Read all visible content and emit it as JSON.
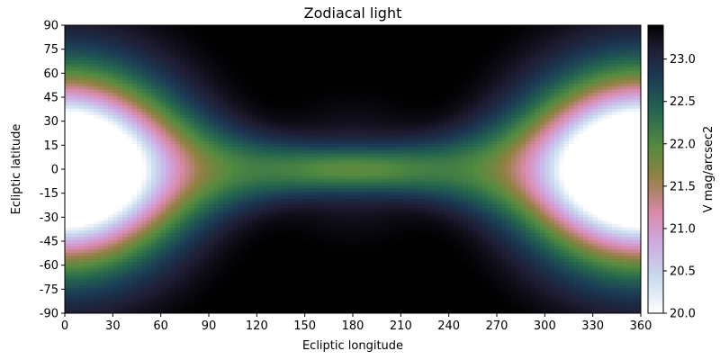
{
  "chart_data": {
    "type": "heatmap",
    "title": "Zodiacal light",
    "xlabel": "Ecliptic longitude",
    "ylabel": "Ecliptic latitude",
    "xlim": [
      0,
      360
    ],
    "ylim": [
      -90,
      90
    ],
    "xticks": [
      0,
      30,
      60,
      90,
      120,
      150,
      180,
      210,
      240,
      270,
      300,
      330,
      360
    ],
    "yticks": [
      -90,
      -75,
      -60,
      -45,
      -30,
      -15,
      0,
      15,
      30,
      45,
      60,
      75,
      90
    ],
    "grid": false,
    "colormap": "cubehelix (reversed)",
    "colorbar": {
      "label": "V mag/arcsec2",
      "range": [
        20.0,
        23.4
      ],
      "ticks": [
        20.0,
        20.5,
        21.0,
        21.5,
        22.0,
        22.5,
        23.0
      ]
    },
    "features": [
      {
        "description": "brightest region near the Sun at ecliptic longitude 0/360, latitude 0",
        "value_min": 20.0
      },
      {
        "description": "gegenschein near longitude 180, latitude 0",
        "value_approx": 22.1
      },
      {
        "description": "darkest regions near latitude ±70, longitude 100 and 260",
        "value_max": 23.4
      }
    ]
  }
}
